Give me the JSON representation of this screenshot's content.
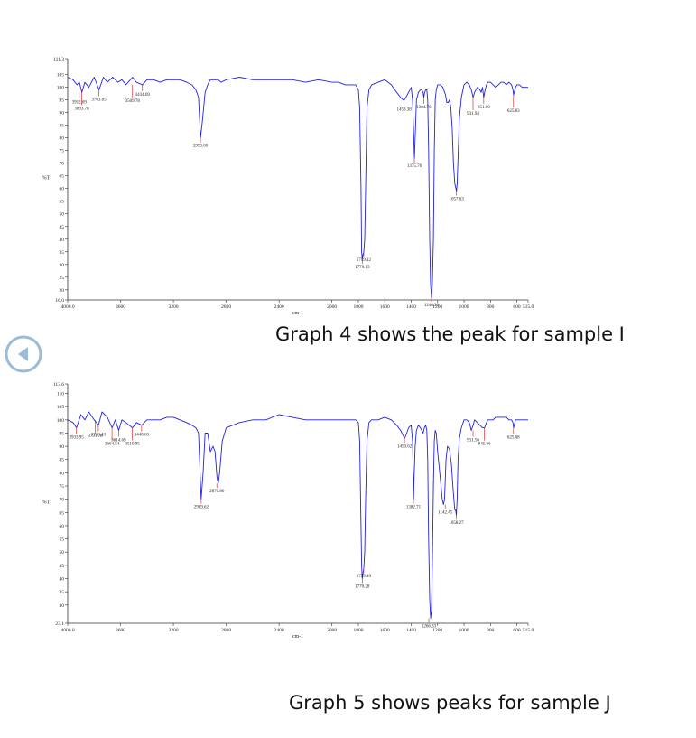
{
  "nav": {
    "back_icon": "circle-left-arrow-icon",
    "color": "#9bbbd9"
  },
  "captions": {
    "graph4": "Graph 4 shows the peak for sample I",
    "graph5": "Graph 5 shows peaks for sample J"
  },
  "colors": {
    "spectrum": "#2222dd",
    "peak_marker": "#e03030",
    "axis": "#333333"
  },
  "chart_data": [
    {
      "type": "line",
      "xlabel": "cm-1",
      "ylabel": "%T",
      "xlim": [
        4000.0,
        515.0
      ],
      "ylim": [
        16.0,
        111.3
      ],
      "x_ticks": [
        {
          "v": 4000,
          "label": "4000.0"
        },
        {
          "v": 3600,
          "label": "3600"
        },
        {
          "v": 3200,
          "label": "3200"
        },
        {
          "v": 2800,
          "label": "2800"
        },
        {
          "v": 2400,
          "label": "2400"
        },
        {
          "v": 2000,
          "label": "2000"
        },
        {
          "v": 1800,
          "label": "1800"
        },
        {
          "v": 1600,
          "label": "1600"
        },
        {
          "v": 1400,
          "label": "1400"
        },
        {
          "v": 1200,
          "label": "1200"
        },
        {
          "v": 1000,
          "label": "1000"
        },
        {
          "v": 800,
          "label": "800"
        },
        {
          "v": 600,
          "label": "600"
        },
        {
          "v": 515,
          "label": "515.0"
        }
      ],
      "y_ticks": [
        {
          "v": 16,
          "label": "16.0"
        },
        {
          "v": 20,
          "label": "20"
        },
        {
          "v": 25,
          "label": "25"
        },
        {
          "v": 30,
          "label": "30"
        },
        {
          "v": 35,
          "label": "35"
        },
        {
          "v": 40,
          "label": "40"
        },
        {
          "v": 45,
          "label": "45"
        },
        {
          "v": 50,
          "label": "50"
        },
        {
          "v": 55,
          "label": "55"
        },
        {
          "v": 60,
          "label": "60"
        },
        {
          "v": 65,
          "label": "65"
        },
        {
          "v": 70,
          "label": "70"
        },
        {
          "v": 75,
          "label": "75"
        },
        {
          "v": 80,
          "label": "80"
        },
        {
          "v": 85,
          "label": "85"
        },
        {
          "v": 90,
          "label": "90"
        },
        {
          "v": 95,
          "label": "95"
        },
        {
          "v": 100,
          "label": "100"
        },
        {
          "v": 105,
          "label": "105"
        },
        {
          "v": 111.3,
          "label": "111.3"
        }
      ],
      "series": [
        {
          "x": [
            4000,
            3960,
            3930,
            3912,
            3893,
            3870,
            3840,
            3800,
            3763,
            3730,
            3700,
            3660,
            3620,
            3590,
            3560,
            3509,
            3480,
            3434,
            3400,
            3350,
            3300,
            3250,
            3200,
            3150,
            3100,
            3060,
            3030,
            3010,
            2995,
            2980,
            2960,
            2940,
            2920,
            2900,
            2880,
            2860,
            2840,
            2800,
            2700,
            2600,
            2500,
            2400,
            2300,
            2200,
            2100,
            2000,
            1950,
            1900,
            1850,
            1820,
            1800,
            1790,
            1780,
            1775,
            1770,
            1765,
            1759,
            1752,
            1745,
            1735,
            1720,
            1700,
            1650,
            1600,
            1550,
            1510,
            1480,
            1460,
            1453,
            1440,
            1420,
            1400,
            1390,
            1380,
            1375,
            1370,
            1360,
            1345,
            1330,
            1320,
            1310,
            1304,
            1298,
            1290,
            1282,
            1275,
            1268,
            1260,
            1253,
            1246,
            1240,
            1232,
            1225,
            1218,
            1210,
            1200,
            1180,
            1160,
            1140,
            1130,
            1120,
            1110,
            1100,
            1090,
            1080,
            1070,
            1062,
            1057,
            1052,
            1045,
            1035,
            1020,
            1000,
            980,
            960,
            945,
            931,
            920,
            900,
            880,
            870,
            860,
            851,
            840,
            830,
            820,
            800,
            780,
            760,
            740,
            720,
            700,
            680,
            660,
            640,
            630,
            625,
            620,
            610,
            600,
            580,
            560,
            540,
            515
          ],
          "y": [
            104,
            103,
            101,
            102,
            98,
            102,
            100,
            104,
            99,
            104,
            102,
            104,
            102,
            103,
            101,
            104,
            102,
            101,
            103,
            103,
            102,
            103,
            103,
            103,
            102,
            101,
            99,
            96,
            80,
            87,
            98,
            101,
            103,
            103,
            103,
            103,
            102,
            103,
            104,
            103,
            103,
            103,
            103,
            102,
            103,
            102,
            102,
            101,
            101,
            101,
            99,
            92,
            60,
            35,
            32,
            34,
            35,
            40,
            60,
            92,
            99,
            101,
            102,
            103,
            101,
            98,
            96,
            95,
            95,
            96,
            98,
            100,
            95,
            80,
            72,
            80,
            95,
            98,
            99,
            99,
            98,
            96,
            98,
            99,
            99,
            95,
            75,
            40,
            22,
            17,
            22,
            40,
            75,
            95,
            99,
            101,
            101,
            100,
            97,
            94,
            94,
            95,
            92,
            84,
            70,
            62,
            60,
            59,
            62,
            72,
            88,
            96,
            101,
            102,
            101,
            99,
            96,
            98,
            100,
            99,
            98,
            100,
            96,
            99,
            101,
            102,
            102,
            101,
            100,
            101,
            102,
            102,
            101,
            102,
            101,
            99,
            97,
            98,
            100,
            101,
            101,
            100,
            100,
            100
          ]
        }
      ],
      "peaks": [
        {
          "x": 3912.69,
          "y": 98,
          "label": "3912.69"
        },
        {
          "x": 3893.78,
          "y": 98,
          "label": "3893.78"
        },
        {
          "x": 3763.85,
          "y": 99,
          "label": "3763.85"
        },
        {
          "x": 3509.78,
          "y": 101,
          "label": "3509.78"
        },
        {
          "x": 3434.69,
          "y": 101,
          "label": "3434.69"
        },
        {
          "x": 2995.0,
          "y": 80,
          "label": "2995.00"
        },
        {
          "x": 1770.15,
          "y": 32,
          "label": "1770.15"
        },
        {
          "x": 1759.12,
          "y": 35,
          "label": "1759.12"
        },
        {
          "x": 1453.38,
          "y": 95,
          "label": "1453.38"
        },
        {
          "x": 1375.76,
          "y": 72,
          "label": "1375.76"
        },
        {
          "x": 1304.7,
          "y": 96,
          "label": "1304.70"
        },
        {
          "x": 1246.2,
          "y": 17,
          "label": "1246.20"
        },
        {
          "x": 1057.63,
          "y": 59,
          "label": "1057.63"
        },
        {
          "x": 931.94,
          "y": 96,
          "label": "931.94"
        },
        {
          "x": 851.0,
          "y": 96,
          "label": "851.00"
        },
        {
          "x": 625.83,
          "y": 97,
          "label": "625.83"
        }
      ]
    },
    {
      "type": "line",
      "xlabel": "cm-1",
      "ylabel": "%T",
      "xlim": [
        4000.0,
        515.0
      ],
      "ylim": [
        23.1,
        113.6
      ],
      "x_ticks": [
        {
          "v": 4000,
          "label": "4000.0"
        },
        {
          "v": 3600,
          "label": "3600"
        },
        {
          "v": 3200,
          "label": "3200"
        },
        {
          "v": 2800,
          "label": "2800"
        },
        {
          "v": 2400,
          "label": "2400"
        },
        {
          "v": 2000,
          "label": "2000"
        },
        {
          "v": 1800,
          "label": "1800"
        },
        {
          "v": 1600,
          "label": "1600"
        },
        {
          "v": 1400,
          "label": "1400"
        },
        {
          "v": 1200,
          "label": "1200"
        },
        {
          "v": 1000,
          "label": "1000"
        },
        {
          "v": 800,
          "label": "800"
        },
        {
          "v": 600,
          "label": "600"
        },
        {
          "v": 515,
          "label": "515.0"
        }
      ],
      "y_ticks": [
        {
          "v": 23.1,
          "label": "23.1"
        },
        {
          "v": 30,
          "label": "30"
        },
        {
          "v": 35,
          "label": "35"
        },
        {
          "v": 40,
          "label": "40"
        },
        {
          "v": 45,
          "label": "45"
        },
        {
          "v": 50,
          "label": "50"
        },
        {
          "v": 55,
          "label": "55"
        },
        {
          "v": 60,
          "label": "60"
        },
        {
          "v": 65,
          "label": "65"
        },
        {
          "v": 70,
          "label": "70"
        },
        {
          "v": 75,
          "label": "75"
        },
        {
          "v": 80,
          "label": "80"
        },
        {
          "v": 85,
          "label": "85"
        },
        {
          "v": 90,
          "label": "90"
        },
        {
          "v": 95,
          "label": "95"
        },
        {
          "v": 100,
          "label": "100"
        },
        {
          "v": 105,
          "label": "105"
        },
        {
          "v": 110,
          "label": "110"
        },
        {
          "v": 113.6,
          "label": "113.6"
        }
      ],
      "series": [
        {
          "x": [
            4000,
            3960,
            3933,
            3900,
            3870,
            3840,
            3800,
            3768,
            3740,
            3700,
            3664,
            3640,
            3614,
            3590,
            3560,
            3510,
            3480,
            3440,
            3400,
            3350,
            3300,
            3250,
            3200,
            3150,
            3100,
            3060,
            3030,
            3010,
            2990,
            2975,
            2960,
            2940,
            2920,
            2900,
            2885,
            2870,
            2860,
            2850,
            2830,
            2800,
            2700,
            2600,
            2500,
            2400,
            2300,
            2200,
            2100,
            2000,
            1950,
            1900,
            1850,
            1820,
            1800,
            1790,
            1780,
            1775,
            1770,
            1765,
            1759,
            1752,
            1745,
            1735,
            1720,
            1700,
            1650,
            1600,
            1550,
            1510,
            1480,
            1460,
            1450,
            1440,
            1420,
            1400,
            1390,
            1385,
            1382,
            1378,
            1370,
            1360,
            1345,
            1330,
            1310,
            1300,
            1290,
            1282,
            1275,
            1268,
            1260,
            1253,
            1246,
            1240,
            1232,
            1225,
            1218,
            1210,
            1200,
            1180,
            1165,
            1155,
            1148,
            1142,
            1136,
            1125,
            1110,
            1095,
            1080,
            1070,
            1064,
            1058,
            1052,
            1045,
            1035,
            1020,
            1000,
            980,
            960,
            945,
            931,
            920,
            900,
            880,
            860,
            845,
            830,
            820,
            800,
            780,
            760,
            740,
            720,
            700,
            680,
            660,
            640,
            630,
            625,
            620,
            610,
            600,
            580,
            560,
            540,
            515
          ],
          "y": [
            100,
            99,
            97,
            102,
            100,
            103,
            100,
            98,
            103,
            101,
            97,
            100,
            96,
            100,
            99,
            97,
            99,
            98,
            100,
            100,
            100,
            101,
            101,
            100,
            99,
            98,
            97,
            95,
            70,
            80,
            95,
            95,
            88,
            90,
            88,
            78,
            76,
            80,
            92,
            97,
            99,
            100,
            100,
            102,
            101,
            100,
            100,
            100,
            100,
            100,
            100,
            100,
            99,
            92,
            60,
            45,
            40,
            42,
            44,
            50,
            70,
            92,
            99,
            100,
            100,
            101,
            100,
            98,
            96,
            94,
            93,
            94,
            97,
            98,
            92,
            80,
            70,
            78,
            90,
            96,
            98,
            97,
            95,
            97,
            98,
            96,
            85,
            55,
            32,
            25,
            28,
            45,
            75,
            92,
            96,
            95,
            88,
            78,
            70,
            68,
            70,
            77,
            85,
            90,
            89,
            83,
            72,
            66,
            66,
            64,
            70,
            85,
            93,
            97,
            100,
            100,
            99,
            96,
            98,
            100,
            99,
            98,
            97,
            97,
            99,
            100,
            100,
            100,
            101,
            101,
            101,
            101,
            101,
            100,
            100,
            99,
            97,
            98,
            100,
            100,
            100,
            100,
            100,
            100
          ]
        }
      ],
      "peaks": [
        {
          "x": 3933.95,
          "y": 97,
          "label": "3933.95"
        },
        {
          "x": 3791.78,
          "y": 100,
          "label": "3791.78"
        },
        {
          "x": 3768.43,
          "y": 98,
          "label": "3768.43"
        },
        {
          "x": 3664.54,
          "y": 97,
          "label": "3664.54"
        },
        {
          "x": 3614.69,
          "y": 96,
          "label": "3614.69"
        },
        {
          "x": 3510.95,
          "y": 97,
          "label": "3510.95"
        },
        {
          "x": 3440.65,
          "y": 98,
          "label": "3440.65"
        },
        {
          "x": 2989.62,
          "y": 70,
          "label": "2989.62"
        },
        {
          "x": 2870.86,
          "y": 76,
          "label": "2870.86"
        },
        {
          "x": 1770.28,
          "y": 40,
          "label": "1770.28"
        },
        {
          "x": 1759.1,
          "y": 44,
          "label": "1759.10"
        },
        {
          "x": 1450.62,
          "y": 93,
          "label": "1450.62"
        },
        {
          "x": 1382.71,
          "y": 70,
          "label": "1382.71"
        },
        {
          "x": 1266.33,
          "y": 25,
          "label": "1266.33"
        },
        {
          "x": 1142.45,
          "y": 68,
          "label": "1142.45"
        },
        {
          "x": 1058.27,
          "y": 64,
          "label": "1058.27"
        },
        {
          "x": 931.56,
          "y": 96,
          "label": "931.56"
        },
        {
          "x": 845.66,
          "y": 97,
          "label": "845.66"
        },
        {
          "x": 625.68,
          "y": 97,
          "label": "625.68"
        }
      ]
    }
  ]
}
